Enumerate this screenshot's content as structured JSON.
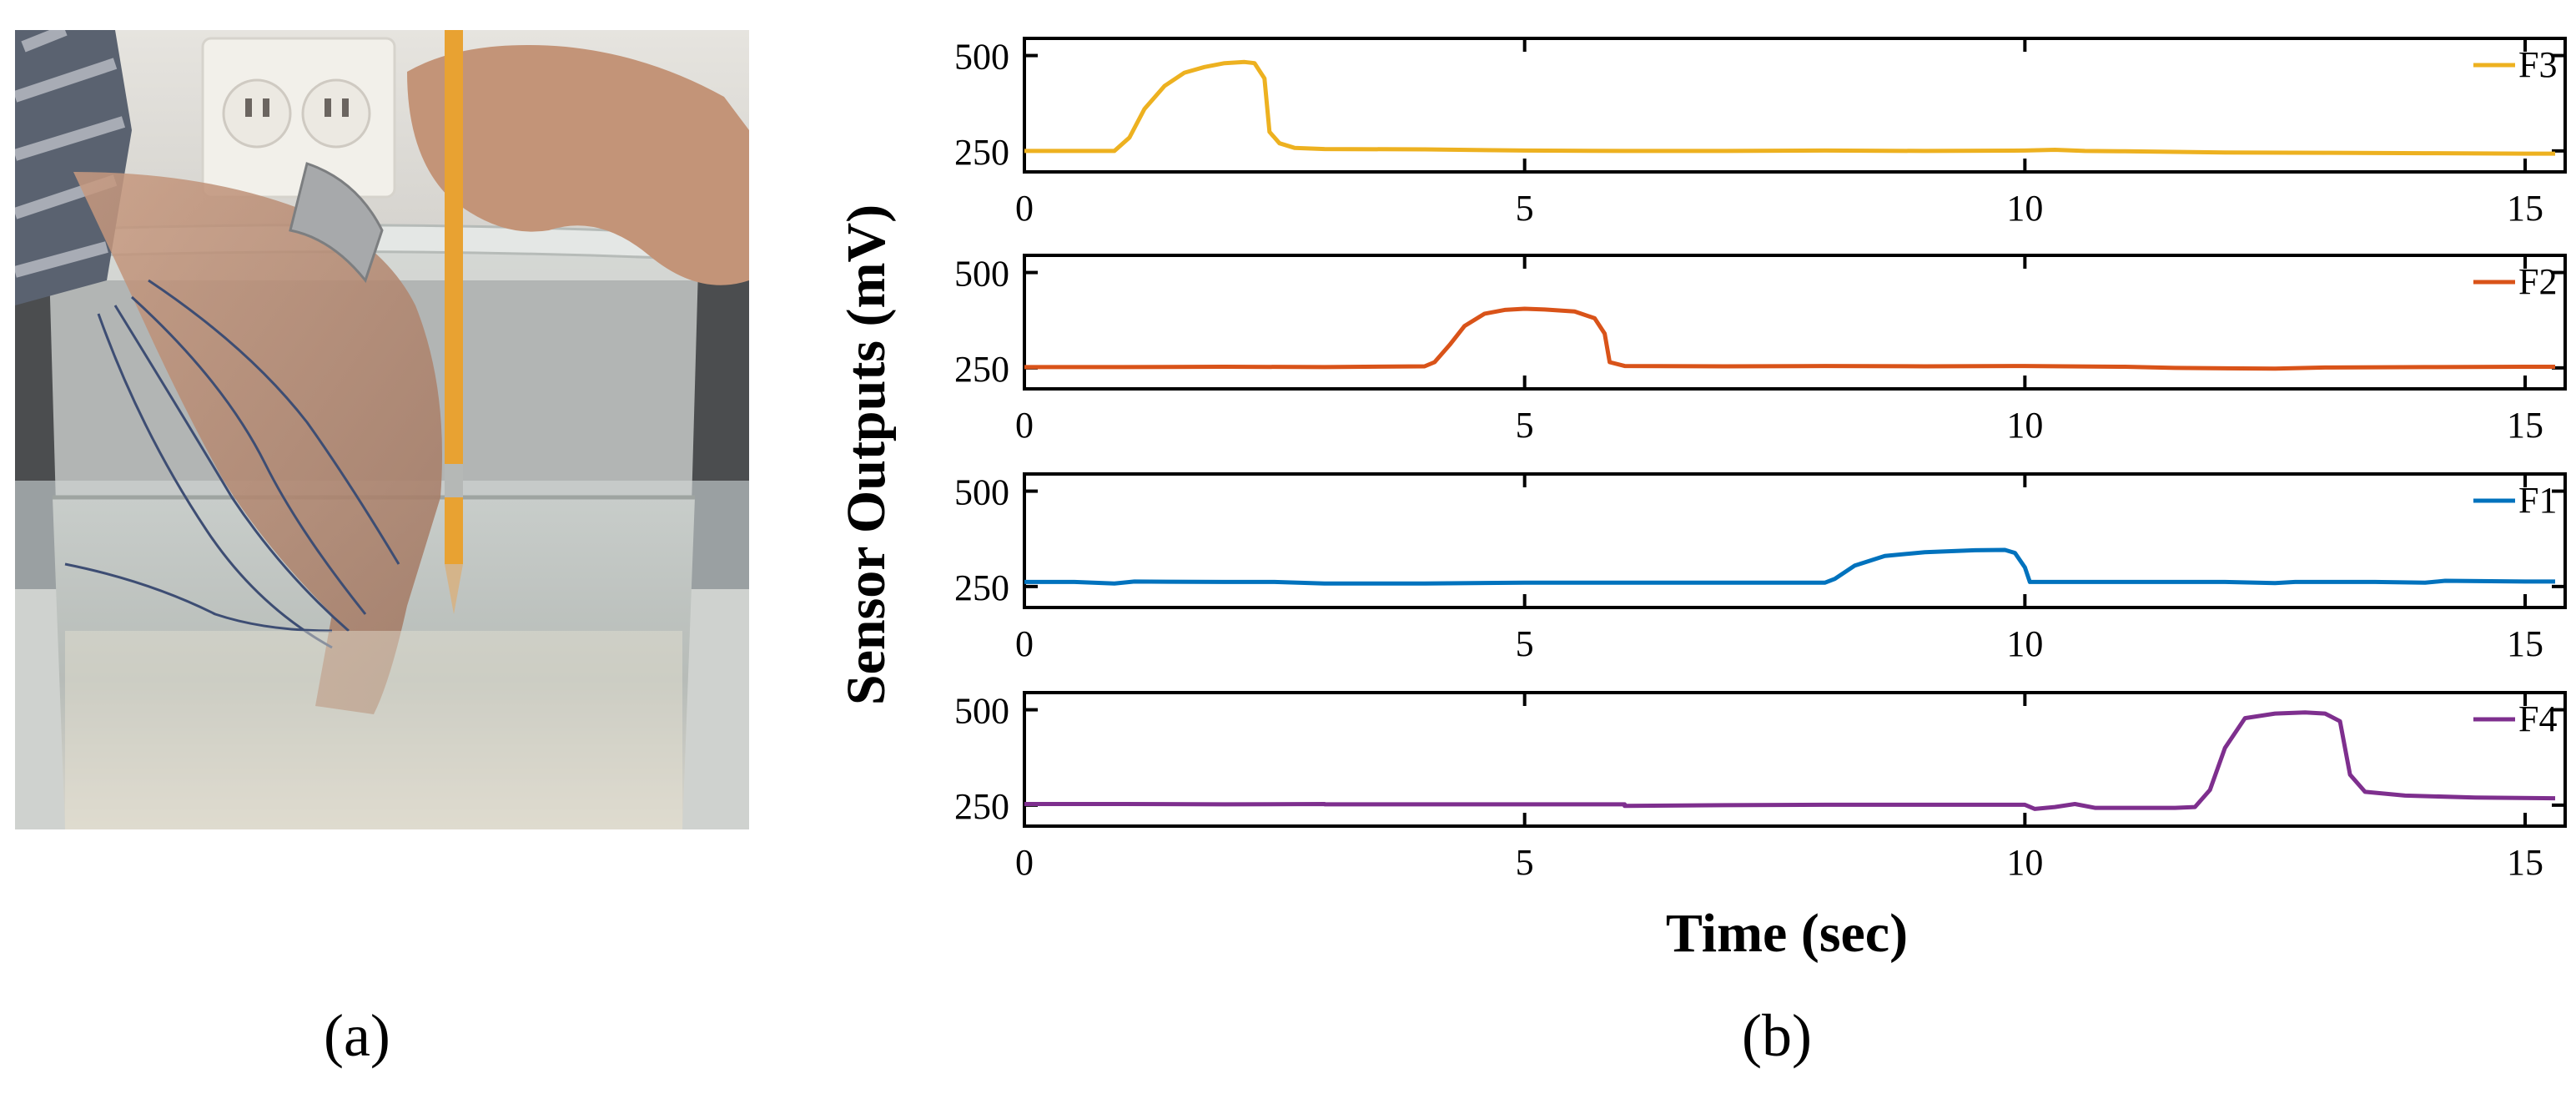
{
  "panel_a": {
    "caption": "(a)",
    "image_description_icon": "photo-hand-in-water-container"
  },
  "panel_b": {
    "caption": "(b)"
  },
  "chart_data": {
    "type": "line",
    "ylabel": "Sensor Outputs (mV)",
    "xlabel": "Time (sec)",
    "xlim": [
      0,
      15.4
    ],
    "x_ticks": [
      0,
      5,
      10,
      15
    ],
    "ylim": [
      195,
      545
    ],
    "y_ticks": [
      250,
      500
    ],
    "legend_position": "top-right",
    "grid": false,
    "subplots": [
      {
        "name": "F3",
        "color": "#EDB120",
        "points": [
          [
            0,
            250
          ],
          [
            0.5,
            250
          ],
          [
            0.9,
            250
          ],
          [
            1.05,
            285
          ],
          [
            1.2,
            360
          ],
          [
            1.4,
            420
          ],
          [
            1.6,
            455
          ],
          [
            1.8,
            470
          ],
          [
            2.0,
            480
          ],
          [
            2.2,
            483
          ],
          [
            2.3,
            480
          ],
          [
            2.4,
            440
          ],
          [
            2.45,
            300
          ],
          [
            2.55,
            270
          ],
          [
            2.7,
            258
          ],
          [
            3,
            255
          ],
          [
            4,
            254
          ],
          [
            5,
            251
          ],
          [
            6,
            250
          ],
          [
            7,
            250
          ],
          [
            8,
            251
          ],
          [
            9,
            250
          ],
          [
            10,
            251
          ],
          [
            10.3,
            253
          ],
          [
            10.6,
            250
          ],
          [
            11,
            249
          ],
          [
            12,
            246
          ],
          [
            13,
            245
          ],
          [
            14,
            244
          ],
          [
            15,
            243
          ],
          [
            15.3,
            243
          ]
        ]
      },
      {
        "name": "F2",
        "color": "#D95319",
        "points": [
          [
            0,
            252
          ],
          [
            1,
            252
          ],
          [
            2,
            253
          ],
          [
            3,
            252
          ],
          [
            4,
            254
          ],
          [
            4.1,
            265
          ],
          [
            4.25,
            310
          ],
          [
            4.4,
            360
          ],
          [
            4.6,
            392
          ],
          [
            4.8,
            402
          ],
          [
            5.0,
            405
          ],
          [
            5.2,
            403
          ],
          [
            5.5,
            398
          ],
          [
            5.7,
            380
          ],
          [
            5.8,
            340
          ],
          [
            5.85,
            265
          ],
          [
            6,
            255
          ],
          [
            7,
            254
          ],
          [
            8,
            255
          ],
          [
            9,
            254
          ],
          [
            10,
            255
          ],
          [
            11,
            253
          ],
          [
            11.5,
            250
          ],
          [
            12.5,
            248
          ],
          [
            13,
            251
          ],
          [
            14,
            252
          ],
          [
            15,
            253
          ],
          [
            15.3,
            253
          ]
        ]
      },
      {
        "name": "F1",
        "color": "#0072BD",
        "points": [
          [
            0,
            262
          ],
          [
            0.5,
            262
          ],
          [
            0.9,
            258
          ],
          [
            1.1,
            263
          ],
          [
            2,
            262
          ],
          [
            2.5,
            262
          ],
          [
            3,
            258
          ],
          [
            4,
            258
          ],
          [
            5,
            260
          ],
          [
            6,
            260
          ],
          [
            7,
            260
          ],
          [
            8,
            260
          ],
          [
            8.1,
            270
          ],
          [
            8.3,
            305
          ],
          [
            8.6,
            330
          ],
          [
            9,
            340
          ],
          [
            9.5,
            345
          ],
          [
            9.8,
            346
          ],
          [
            9.9,
            338
          ],
          [
            10.0,
            300
          ],
          [
            10.05,
            262
          ],
          [
            11,
            262
          ],
          [
            12,
            262
          ],
          [
            12.5,
            259
          ],
          [
            12.7,
            262
          ],
          [
            13.5,
            262
          ],
          [
            14,
            260
          ],
          [
            14.2,
            265
          ],
          [
            15,
            263
          ],
          [
            15.3,
            263
          ]
        ]
      },
      {
        "name": "F4",
        "color": "#7E2F8E",
        "points": [
          [
            0,
            253
          ],
          [
            1,
            253
          ],
          [
            2,
            252
          ],
          [
            3,
            253
          ],
          [
            3,
            252
          ],
          [
            4,
            252
          ],
          [
            5,
            252
          ],
          [
            6,
            252
          ],
          [
            6,
            248
          ],
          [
            7,
            250
          ],
          [
            8,
            251
          ],
          [
            9,
            251
          ],
          [
            10,
            251
          ],
          [
            10.1,
            240
          ],
          [
            10.3,
            245
          ],
          [
            10.5,
            253
          ],
          [
            10.7,
            243
          ],
          [
            11,
            243
          ],
          [
            11.5,
            243
          ],
          [
            11.7,
            245
          ],
          [
            11.85,
            290
          ],
          [
            12.0,
            400
          ],
          [
            12.2,
            478
          ],
          [
            12.5,
            490
          ],
          [
            12.8,
            493
          ],
          [
            13.0,
            490
          ],
          [
            13.15,
            470
          ],
          [
            13.25,
            330
          ],
          [
            13.4,
            285
          ],
          [
            13.8,
            275
          ],
          [
            14.5,
            270
          ],
          [
            15.3,
            268
          ]
        ]
      }
    ]
  }
}
